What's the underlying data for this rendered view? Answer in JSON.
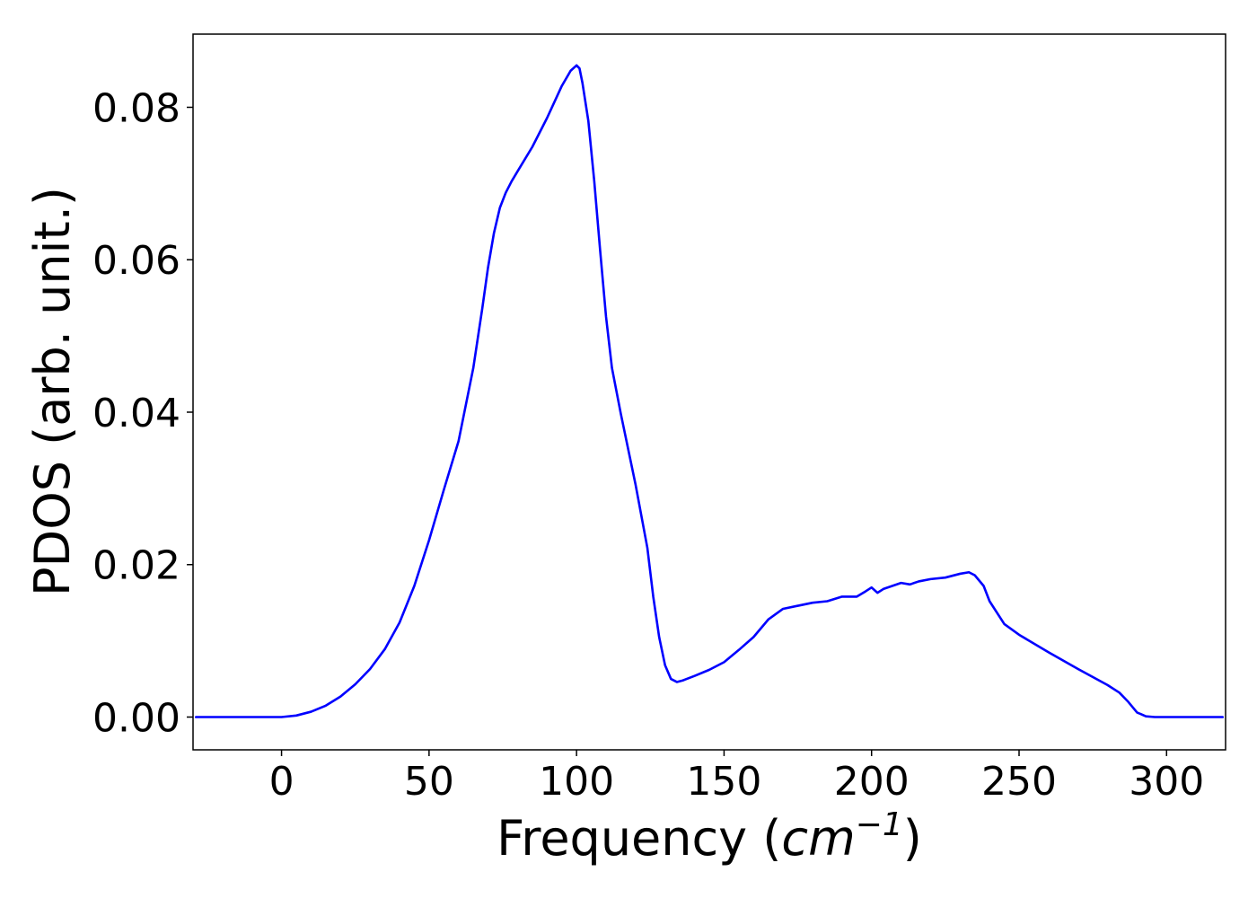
{
  "chart_data": {
    "type": "line",
    "title": "",
    "xlabel": {
      "prefix": "Frequency (",
      "unit_base": "cm",
      "unit_sup": "−1",
      "suffix": ")"
    },
    "ylabel": "PDOS (arb. unit.)",
    "xlim": [
      -30,
      320
    ],
    "ylim": [
      -0.0043,
      0.0896
    ],
    "xticks": [
      0,
      50,
      100,
      150,
      200,
      250,
      300
    ],
    "xtick_labels": [
      "0",
      "50",
      "100",
      "150",
      "200",
      "250",
      "300"
    ],
    "yticks": [
      0.0,
      0.02,
      0.04,
      0.06,
      0.08
    ],
    "ytick_labels": [
      "0.00",
      "0.02",
      "0.04",
      "0.06",
      "0.08"
    ],
    "grid": false,
    "line_color": "#0000ff",
    "series": [
      {
        "x": [
          -29,
          -20,
          -10,
          0,
          5,
          10,
          15,
          20,
          25,
          30,
          35,
          40,
          45,
          50,
          55,
          60,
          65,
          68,
          70,
          72,
          74,
          76,
          78,
          80,
          85,
          90,
          95,
          98,
          100,
          101,
          102,
          104,
          106,
          108,
          110,
          112,
          115,
          120,
          124,
          126,
          128,
          130,
          132,
          134,
          136,
          140,
          145,
          150,
          155,
          160,
          165,
          170,
          175,
          180,
          185,
          190,
          195,
          198,
          200,
          202,
          204,
          207,
          210,
          213,
          216,
          220,
          225,
          230,
          233,
          235,
          238,
          240,
          245,
          250,
          260,
          270,
          280,
          284,
          287,
          290,
          293,
          296,
          300,
          310,
          319
        ],
        "y": [
          0.0,
          0.0,
          0.0,
          0.0,
          0.0002,
          0.0007,
          0.0015,
          0.0027,
          0.0043,
          0.0063,
          0.0089,
          0.0124,
          0.0172,
          0.0232,
          0.0298,
          0.0362,
          0.0458,
          0.0535,
          0.059,
          0.0635,
          0.0668,
          0.0688,
          0.0703,
          0.0716,
          0.0748,
          0.0786,
          0.0828,
          0.0848,
          0.0855,
          0.0851,
          0.0832,
          0.0782,
          0.0703,
          0.0612,
          0.0525,
          0.0458,
          0.0398,
          0.0305,
          0.0222,
          0.0158,
          0.0105,
          0.0068,
          0.005,
          0.0046,
          0.0048,
          0.0054,
          0.0062,
          0.0072,
          0.0088,
          0.0105,
          0.0128,
          0.0142,
          0.0146,
          0.015,
          0.0152,
          0.0158,
          0.0158,
          0.0165,
          0.017,
          0.0163,
          0.0168,
          0.0172,
          0.0176,
          0.0174,
          0.0178,
          0.0181,
          0.0183,
          0.0188,
          0.019,
          0.0186,
          0.0172,
          0.0152,
          0.0122,
          0.0108,
          0.0085,
          0.0063,
          0.0042,
          0.0032,
          0.002,
          0.0006,
          0.0001,
          0.0,
          0.0,
          0.0,
          0.0
        ]
      }
    ]
  }
}
